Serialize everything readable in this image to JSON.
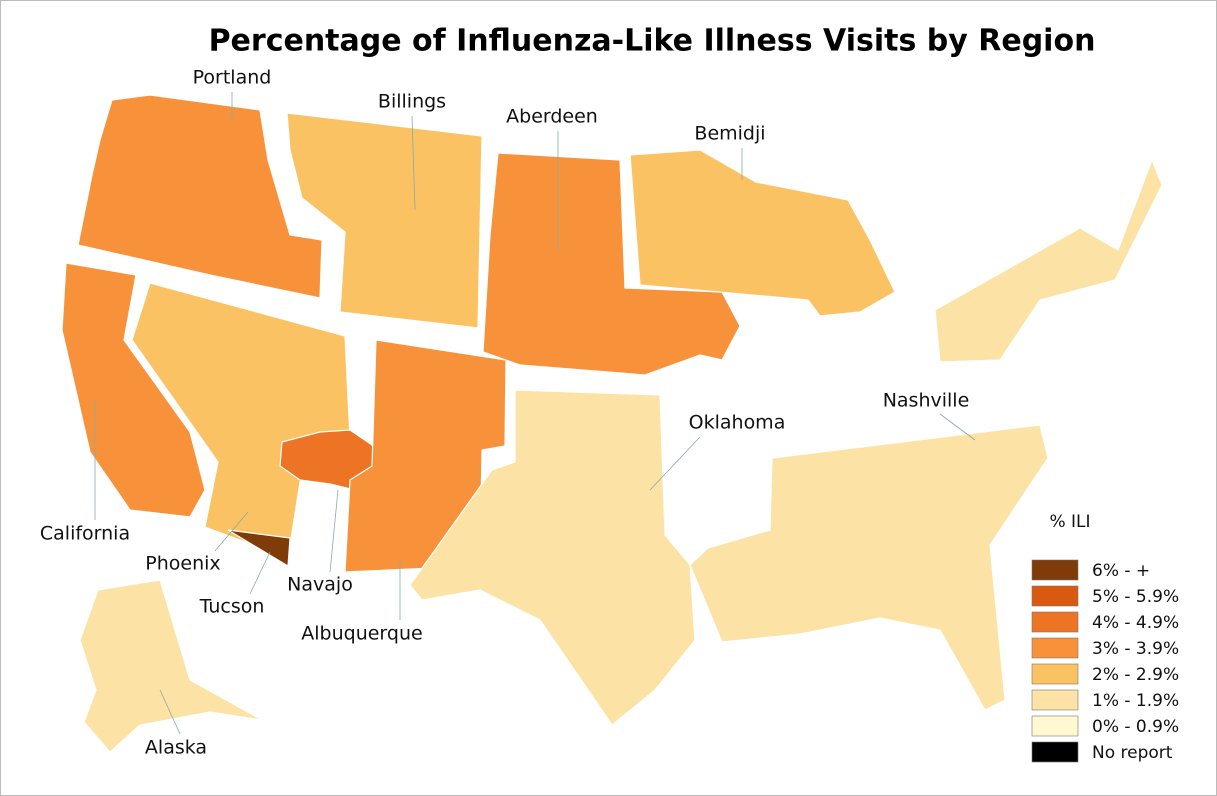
{
  "title": "Percentage of Influenza-Like Illness Visits by Region",
  "regions": [
    {
      "name": "Portland",
      "color": "#f7923a"
    },
    {
      "name": "Billings",
      "color": "#fbc263"
    },
    {
      "name": "Aberdeen",
      "color": "#f7923a"
    },
    {
      "name": "Bemidji",
      "color": "#fbc263"
    },
    {
      "name": "California",
      "color": "#f7923a"
    },
    {
      "name": "Phoenix",
      "color": "#fbc263"
    },
    {
      "name": "Navajo",
      "color": "#ec7424"
    },
    {
      "name": "Tucson",
      "color": "#7f3b08"
    },
    {
      "name": "Albuquerque",
      "color": "#f7923a"
    },
    {
      "name": "Oklahoma",
      "color": "#fce2a5"
    },
    {
      "name": "Nashville",
      "color": "#fce2a5"
    },
    {
      "name": "Alaska",
      "color": "#fce2a5"
    }
  ],
  "legend": {
    "title": "% ILI",
    "items": [
      {
        "label": "6% - +",
        "color": "#7f3b08"
      },
      {
        "label": "5% - 5.9%",
        "color": "#d9590e"
      },
      {
        "label": "4% - 4.9%",
        "color": "#ec7424"
      },
      {
        "label": "3% - 3.9%",
        "color": "#f7923a"
      },
      {
        "label": "2% - 2.9%",
        "color": "#fbc263"
      },
      {
        "label": "1% - 1.9%",
        "color": "#fce2a5"
      },
      {
        "label": "0% - 0.9%",
        "color": "#fff8d0"
      },
      {
        "label": "No report",
        "color": "#000000"
      }
    ]
  }
}
